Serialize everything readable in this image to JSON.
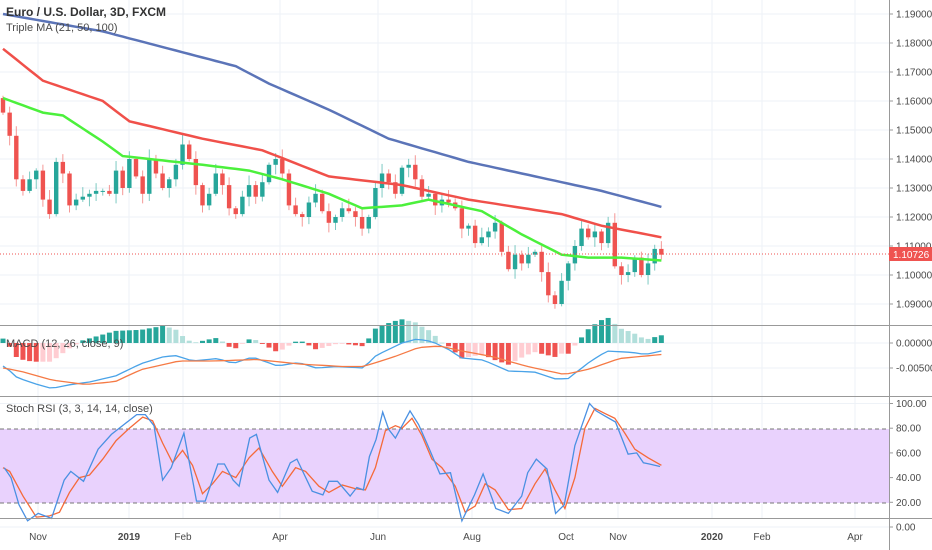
{
  "header": {
    "symbol_title": "Euro / U.S. Dollar, 3D, FXCM",
    "ma_legend": "Triple MA (21, 50, 100)"
  },
  "macd": {
    "legend": "MACD (12, 26, close, 9)",
    "axis_labels": [
      "0.00000",
      "-0.00500"
    ]
  },
  "stoch": {
    "legend": "Stoch RSI (3, 3, 14, 14, close)",
    "axis_labels": [
      "100.00",
      "80.00",
      "60.00",
      "40.00",
      "20.00",
      "0.00"
    ]
  },
  "price_axis": {
    "labels": [
      "1.19000",
      "1.18000",
      "1.17000",
      "1.16000",
      "1.15000",
      "1.14000",
      "1.13000",
      "1.12000",
      "1.11000",
      "1.10000",
      "1.09000"
    ],
    "current_price": "1.10726"
  },
  "time_axis": {
    "labels": [
      "Nov",
      "2019",
      "Feb",
      "Apr",
      "Jun",
      "Aug",
      "Oct",
      "Nov",
      "2020",
      "Feb",
      "Apr"
    ]
  },
  "colors": {
    "up": "#26a69a",
    "down": "#ef5350",
    "ma21": "#4cf03c",
    "ma50": "#f0504a",
    "ma100": "#5b74b8",
    "macd_line": "#4aa3e8",
    "signal_line": "#f57a45",
    "stoch_k": "#4a90e2",
    "stoch_d": "#f56a3a",
    "band": "#e9d2fd",
    "current_price": "#ef5350"
  },
  "chart_data": {
    "type": "candlestick",
    "start_open": 1.161,
    "closes": [
      1.156,
      1.148,
      1.133,
      1.129,
      1.133,
      1.136,
      1.126,
      1.121,
      1.139,
      1.135,
      1.124,
      1.126,
      1.127,
      1.128,
      1.129,
      1.129,
      1.128,
      1.136,
      1.13,
      1.14,
      1.134,
      1.128,
      1.14,
      1.135,
      1.13,
      1.133,
      1.138,
      1.145,
      1.14,
      1.131,
      1.124,
      1.128,
      1.135,
      1.131,
      1.123,
      1.121,
      1.127,
      1.131,
      1.127,
      1.132,
      1.138,
      1.14,
      1.135,
      1.124,
      1.121,
      1.12,
      1.125,
      1.128,
      1.122,
      1.118,
      1.12,
      1.123,
      1.122,
      1.12,
      1.116,
      1.12,
      1.13,
      1.135,
      1.132,
      1.128,
      1.137,
      1.138,
      1.133,
      1.127,
      1.128,
      1.124,
      1.126,
      1.125,
      1.123,
      1.116,
      1.117,
      1.111,
      1.113,
      1.115,
      1.118,
      1.108,
      1.102,
      1.107,
      1.104,
      1.107,
      1.108,
      1.101,
      1.093,
      1.09,
      1.098,
      1.104,
      1.11,
      1.116,
      1.113,
      1.115,
      1.111,
      1.118,
      1.103,
      1.1,
      1.101,
      1.106,
      1.1,
      1.104,
      1.109,
      1.107
    ],
    "ma100": [
      [
        0,
        1.19
      ],
      [
        15,
        1.184
      ],
      [
        25,
        1.178
      ],
      [
        35,
        1.172
      ],
      [
        40,
        1.166
      ],
      [
        49,
        1.157
      ],
      [
        58,
        1.147
      ],
      [
        70,
        1.139
      ],
      [
        82,
        1.133
      ],
      [
        90,
        1.129
      ],
      [
        99,
        1.1235
      ]
    ],
    "ma50": [
      [
        0,
        1.178
      ],
      [
        6,
        1.167
      ],
      [
        15,
        1.16
      ],
      [
        19,
        1.153
      ],
      [
        30,
        1.147
      ],
      [
        39,
        1.143
      ],
      [
        49,
        1.134
      ],
      [
        60,
        1.131
      ],
      [
        70,
        1.126
      ],
      [
        84,
        1.121
      ],
      [
        90,
        1.117
      ],
      [
        99,
        1.113
      ]
    ],
    "ma21": [
      [
        0,
        1.161
      ],
      [
        6,
        1.156
      ],
      [
        9,
        1.155
      ],
      [
        15,
        1.146
      ],
      [
        18,
        1.141
      ],
      [
        30,
        1.138
      ],
      [
        37,
        1.136
      ],
      [
        42,
        1.133
      ],
      [
        49,
        1.128
      ],
      [
        54,
        1.123
      ],
      [
        60,
        1.124
      ],
      [
        64,
        1.126
      ],
      [
        72,
        1.122
      ],
      [
        78,
        1.114
      ],
      [
        84,
        1.107
      ],
      [
        88,
        1.106
      ],
      [
        93,
        1.106
      ],
      [
        99,
        1.105
      ]
    ],
    "macd_line": [
      [
        0.2,
        -0.0046
      ],
      [
        2.1,
        -0.0069
      ],
      [
        4.7,
        -0.0081
      ],
      [
        7.3,
        -0.0091
      ],
      [
        9.8,
        -0.0084
      ],
      [
        13,
        -0.0078
      ],
      [
        16.9,
        -0.0066
      ],
      [
        20.8,
        -0.0041
      ],
      [
        24,
        -0.0028
      ],
      [
        25.9,
        -0.0025
      ],
      [
        28.5,
        -0.0036
      ],
      [
        32.3,
        -0.0031
      ],
      [
        34.6,
        -0.0041
      ],
      [
        37.5,
        -0.0028
      ],
      [
        41.3,
        -0.0046
      ],
      [
        44.5,
        -0.0039
      ],
      [
        47.1,
        -0.005
      ],
      [
        50.3,
        -0.0047
      ],
      [
        54.2,
        -0.005
      ],
      [
        56.1,
        -0.0025
      ],
      [
        60,
        0.0
      ],
      [
        62.2,
        0.0008
      ],
      [
        64.5,
        0.0003
      ],
      [
        67,
        -0.0013
      ],
      [
        69,
        -0.003
      ],
      [
        72.2,
        -0.0034
      ],
      [
        76,
        -0.0056
      ],
      [
        79.9,
        -0.0058
      ],
      [
        83.1,
        -0.0072
      ],
      [
        85,
        -0.0071
      ],
      [
        88.2,
        -0.0038
      ],
      [
        90.8,
        -0.0016
      ],
      [
        94.7,
        -0.0019
      ],
      [
        96.6,
        -0.0023
      ],
      [
        99,
        -0.0016
      ]
    ],
    "signal_line": [
      [
        0.2,
        -0.005
      ],
      [
        3.4,
        -0.0059
      ],
      [
        7.3,
        -0.0074
      ],
      [
        12.4,
        -0.0083
      ],
      [
        16.9,
        -0.0077
      ],
      [
        20.8,
        -0.0053
      ],
      [
        26.5,
        -0.0036
      ],
      [
        31.7,
        -0.0036
      ],
      [
        38.1,
        -0.0033
      ],
      [
        44.5,
        -0.0042
      ],
      [
        51,
        -0.0047
      ],
      [
        54.2,
        -0.0047
      ],
      [
        58.7,
        -0.0028
      ],
      [
        62.5,
        -0.0009
      ],
      [
        65.7,
        -0.0006
      ],
      [
        69,
        -0.0016
      ],
      [
        73.5,
        -0.0027
      ],
      [
        78.6,
        -0.0046
      ],
      [
        84.4,
        -0.0063
      ],
      [
        88.2,
        -0.0052
      ],
      [
        92.7,
        -0.0031
      ],
      [
        99,
        -0.0023
      ]
    ],
    "stoch_k": [
      [
        0.2,
        48
      ],
      [
        1.2,
        40
      ],
      [
        2.4,
        18
      ],
      [
        3.7,
        5
      ],
      [
        5.3,
        11
      ],
      [
        7.3,
        7
      ],
      [
        9.2,
        38
      ],
      [
        10.2,
        45
      ],
      [
        12.1,
        37
      ],
      [
        14.3,
        63
      ],
      [
        16.3,
        75
      ],
      [
        18.2,
        83
      ],
      [
        20.1,
        91
      ],
      [
        21.4,
        91
      ],
      [
        22.7,
        82
      ],
      [
        24,
        38
      ],
      [
        25.3,
        48
      ],
      [
        27.2,
        76
      ],
      [
        29.1,
        21
      ],
      [
        30.4,
        21
      ],
      [
        32.3,
        51
      ],
      [
        33.3,
        51
      ],
      [
        34.6,
        38
      ],
      [
        35.5,
        33
      ],
      [
        37.1,
        72
      ],
      [
        38.1,
        75
      ],
      [
        40,
        38
      ],
      [
        41.3,
        28
      ],
      [
        43.2,
        52
      ],
      [
        44.2,
        55
      ],
      [
        46.5,
        29
      ],
      [
        48.1,
        26
      ],
      [
        49,
        37
      ],
      [
        50.3,
        37
      ],
      [
        52.2,
        25
      ],
      [
        53.2,
        32
      ],
      [
        54.2,
        30
      ],
      [
        55.1,
        57
      ],
      [
        56.1,
        71
      ],
      [
        57.1,
        93
      ],
      [
        58,
        79
      ],
      [
        59,
        72
      ],
      [
        61.2,
        94
      ],
      [
        62.5,
        83
      ],
      [
        63.8,
        67
      ],
      [
        65.7,
        43
      ],
      [
        67.3,
        44
      ],
      [
        69,
        5
      ],
      [
        70.9,
        26
      ],
      [
        72.2,
        43
      ],
      [
        74.1,
        15
      ],
      [
        76,
        11
      ],
      [
        78,
        25
      ],
      [
        78.9,
        44
      ],
      [
        80.2,
        55
      ],
      [
        81.8,
        47
      ],
      [
        83.1,
        11
      ],
      [
        84.4,
        18
      ],
      [
        86,
        66
      ],
      [
        87.3,
        86
      ],
      [
        88.2,
        100
      ],
      [
        89.2,
        94
      ],
      [
        90.5,
        90
      ],
      [
        92.1,
        85
      ],
      [
        94,
        59
      ],
      [
        95.3,
        60
      ],
      [
        96.3,
        52
      ],
      [
        97.2,
        51
      ],
      [
        98.8,
        49
      ]
    ],
    "stoch_d": [
      [
        0,
        48
      ],
      [
        1,
        45
      ],
      [
        3,
        25
      ],
      [
        5,
        8
      ],
      [
        7,
        9
      ],
      [
        8.5,
        12
      ],
      [
        10,
        28
      ],
      [
        11.5,
        40
      ],
      [
        13,
        42
      ],
      [
        15,
        55
      ],
      [
        17,
        70
      ],
      [
        19,
        80
      ],
      [
        21,
        89
      ],
      [
        22.5,
        86
      ],
      [
        24,
        68
      ],
      [
        25.5,
        52
      ],
      [
        27,
        62
      ],
      [
        28.5,
        50
      ],
      [
        30,
        27
      ],
      [
        31.5,
        35
      ],
      [
        33,
        45
      ],
      [
        35,
        40
      ],
      [
        37,
        56
      ],
      [
        38.5,
        64
      ],
      [
        40.5,
        45
      ],
      [
        42,
        33
      ],
      [
        44,
        48
      ],
      [
        45.5,
        45
      ],
      [
        47.5,
        33
      ],
      [
        49,
        28
      ],
      [
        51,
        34
      ],
      [
        53,
        31
      ],
      [
        54.5,
        30
      ],
      [
        56,
        48
      ],
      [
        57.5,
        78
      ],
      [
        59,
        82
      ],
      [
        60,
        80
      ],
      [
        61.5,
        88
      ],
      [
        63,
        74
      ],
      [
        64.5,
        55
      ],
      [
        66,
        48
      ],
      [
        68,
        33
      ],
      [
        69.5,
        12
      ],
      [
        71,
        17
      ],
      [
        72.5,
        35
      ],
      [
        74,
        30
      ],
      [
        76,
        14
      ],
      [
        78,
        15
      ],
      [
        80,
        35
      ],
      [
        81.5,
        47
      ],
      [
        83,
        30
      ],
      [
        84.5,
        15
      ],
      [
        86,
        40
      ],
      [
        87.5,
        80
      ],
      [
        89,
        96
      ],
      [
        90.5,
        92
      ],
      [
        92,
        88
      ],
      [
        93.5,
        76
      ],
      [
        95,
        63
      ],
      [
        97,
        56
      ],
      [
        99,
        50
      ]
    ],
    "stoch_bands": [
      80,
      20
    ],
    "price_range": [
      1.085,
      1.195
    ]
  }
}
